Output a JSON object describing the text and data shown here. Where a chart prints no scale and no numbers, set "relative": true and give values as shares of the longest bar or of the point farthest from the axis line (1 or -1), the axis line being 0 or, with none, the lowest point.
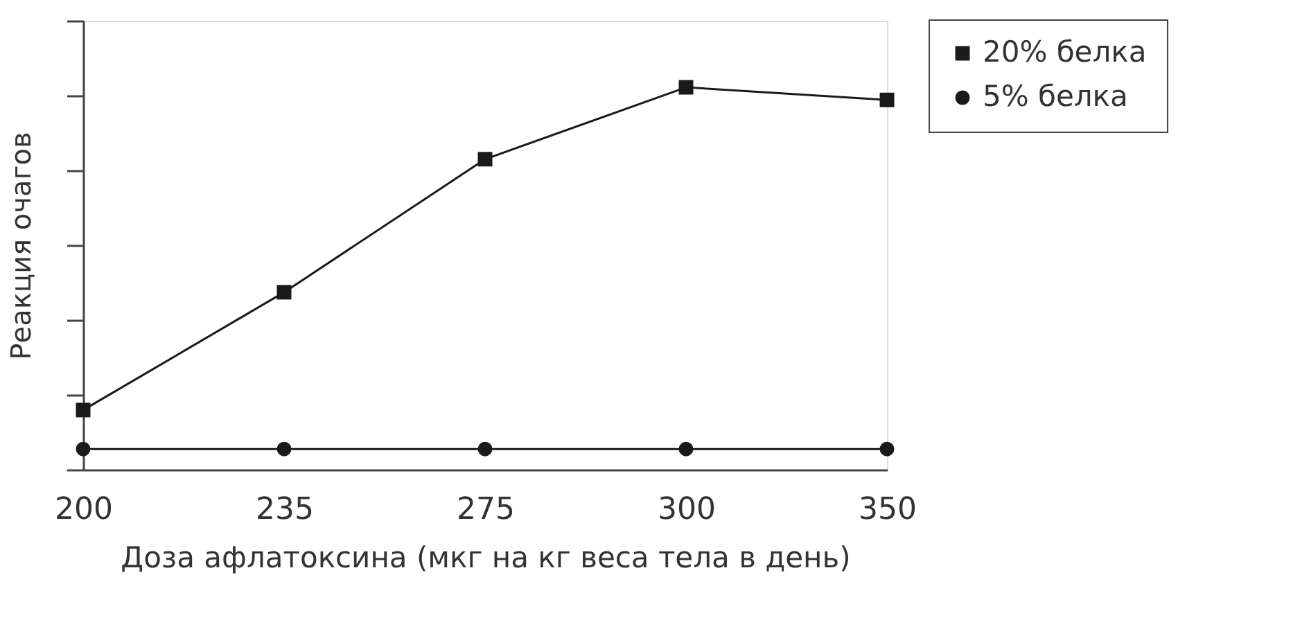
{
  "chart_data": {
    "type": "line",
    "xlabel": "Доза афлатоксина (мкг на кг веса тела в день)",
    "ylabel": "Реакция очагов",
    "categories": [
      "200",
      "235",
      "275",
      "300",
      "350"
    ],
    "relative": true,
    "legend": "top right",
    "grid": false,
    "line_style": "solid",
    "series": [
      {
        "name": "20% белка",
        "color": "#1a1a1a",
        "marker": "square",
        "values": [
          0.156,
          0.464,
          0.812,
          1,
          0.967
        ]
      },
      {
        "name": "5% белка",
        "color": "#1a1a1a",
        "marker": "circle",
        "values": [
          0.054,
          0.054,
          0.054,
          0.054,
          0.054
        ]
      }
    ]
  }
}
